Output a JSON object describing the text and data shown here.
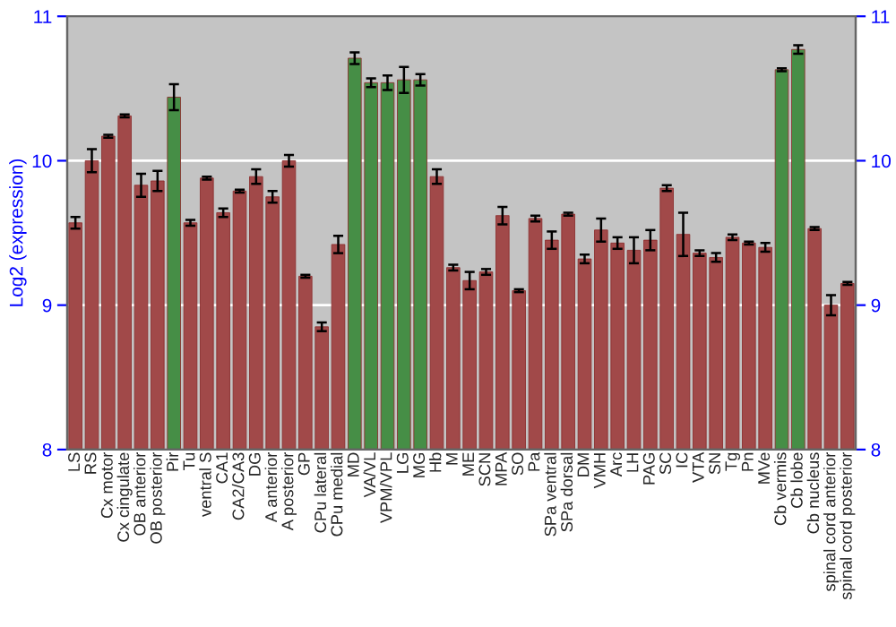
{
  "chart_data": {
    "type": "bar",
    "ylabel": "Log2 (expression)",
    "categories": [
      "LS",
      "RS",
      "Cx motor",
      "Cx cingulate",
      "OB anterior",
      "OB posterior",
      "Pir",
      "Tu",
      "ventral S",
      "CA1",
      "CA2/CA3",
      "DG",
      "A anterior",
      "A posterior",
      "GP",
      "CPu lateral",
      "CPu medial",
      "MD",
      "VA/VL",
      "VPM/VPL",
      "LG",
      "MG",
      "Hb",
      "M",
      "ME",
      "SCN",
      "MPA",
      "SO",
      "Pa",
      "SPa ventral",
      "SPa dorsal",
      "DM",
      "VMH",
      "Arc",
      "LH",
      "PAG",
      "SC",
      "IC",
      "VTA",
      "SN",
      "Tg",
      "Pn",
      "MVe",
      "Cb vermis",
      "Cb lobe",
      "Cb nucleus",
      "spinal cord anterior",
      "spinal cord posterior"
    ],
    "values": [
      9.57,
      10.0,
      10.17,
      10.31,
      9.83,
      9.86,
      10.44,
      9.57,
      9.88,
      9.64,
      9.79,
      9.89,
      9.75,
      10.0,
      9.2,
      8.85,
      9.42,
      10.71,
      10.54,
      10.54,
      10.56,
      10.56,
      9.89,
      9.26,
      9.17,
      9.23,
      9.62,
      9.1,
      9.6,
      9.45,
      9.63,
      9.32,
      9.52,
      9.43,
      9.38,
      9.45,
      9.81,
      9.49,
      9.36,
      9.33,
      9.47,
      9.43,
      9.4,
      10.63,
      10.77,
      9.53,
      9.0,
      9.15
    ],
    "errors": [
      0.04,
      0.08,
      0.01,
      0.01,
      0.08,
      0.07,
      0.09,
      0.02,
      0.01,
      0.03,
      0.01,
      0.05,
      0.04,
      0.04,
      0.01,
      0.03,
      0.06,
      0.04,
      0.03,
      0.05,
      0.09,
      0.04,
      0.05,
      0.02,
      0.06,
      0.02,
      0.06,
      0.01,
      0.02,
      0.06,
      0.01,
      0.03,
      0.08,
      0.04,
      0.09,
      0.07,
      0.02,
      0.15,
      0.02,
      0.03,
      0.02,
      0.01,
      0.03,
      0.01,
      0.03,
      0.01,
      0.07,
      0.01
    ],
    "colors": [
      "#b03a3a",
      "#b03a3a",
      "#b03a3a",
      "#b03a3a",
      "#b03a3a",
      "#b03a3a",
      "#3a9a3a",
      "#b03a3a",
      "#b03a3a",
      "#b03a3a",
      "#b03a3a",
      "#b03a3a",
      "#b03a3a",
      "#b03a3a",
      "#b03a3a",
      "#b03a3a",
      "#b03a3a",
      "#3a9a3a",
      "#3a9a3a",
      "#3a9a3a",
      "#3a9a3a",
      "#3a9a3a",
      "#b03a3a",
      "#b03a3a",
      "#b03a3a",
      "#b03a3a",
      "#b03a3a",
      "#b03a3a",
      "#b03a3a",
      "#b03a3a",
      "#b03a3a",
      "#b03a3a",
      "#b03a3a",
      "#b03a3a",
      "#b03a3a",
      "#b03a3a",
      "#b03a3a",
      "#b03a3a",
      "#b03a3a",
      "#b03a3a",
      "#b03a3a",
      "#b03a3a",
      "#b03a3a",
      "#3a9a3a",
      "#3a9a3a",
      "#b03a3a",
      "#b03a3a",
      "#b03a3a"
    ],
    "ylim": [
      8,
      11
    ],
    "yticks": [
      8,
      9,
      10,
      11
    ],
    "y2lim": [
      8,
      11
    ],
    "y2ticks": [
      8,
      9,
      10,
      11
    ],
    "grid": "y",
    "legend": false
  }
}
